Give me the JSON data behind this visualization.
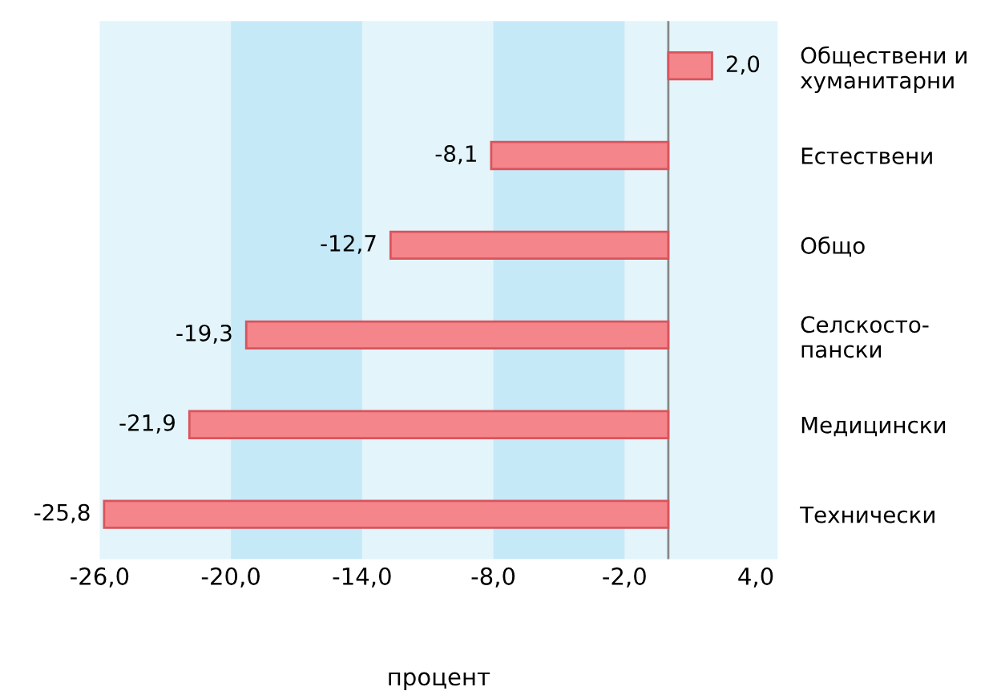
{
  "chart_data": {
    "type": "bar",
    "orientation": "horizontal",
    "xlabel": "процент",
    "categories": [
      "Обществени и\nхуманитарни",
      "Естествени",
      "Общо",
      "Селскосто-\nпански",
      "Медицински",
      "Технически"
    ],
    "values": [
      2.0,
      -8.1,
      -12.7,
      -19.3,
      -21.9,
      -25.8
    ],
    "value_labels": [
      "2,0",
      "-8,1",
      "-12,7",
      "-19,3",
      "-21,9",
      "-25,8"
    ],
    "color": "#f4858a",
    "xlim": [
      -26,
      5
    ],
    "xticks": [
      {
        "value": -26,
        "label": "-26,0"
      },
      {
        "value": -20,
        "label": "-20,0"
      },
      {
        "value": -14,
        "label": "-14,0"
      },
      {
        "value": -8,
        "label": "-8,0"
      },
      {
        "value": -2,
        "label": "-2,0"
      },
      {
        "value": 4,
        "label": "4,0"
      }
    ],
    "bands": [
      {
        "axis": "x",
        "from": -20,
        "to": -14,
        "label": null,
        "color": "#c6e9f8"
      },
      {
        "axis": "x",
        "from": -8,
        "to": -2,
        "label": null,
        "color": "#c6e9f8"
      }
    ],
    "grid": false
  }
}
